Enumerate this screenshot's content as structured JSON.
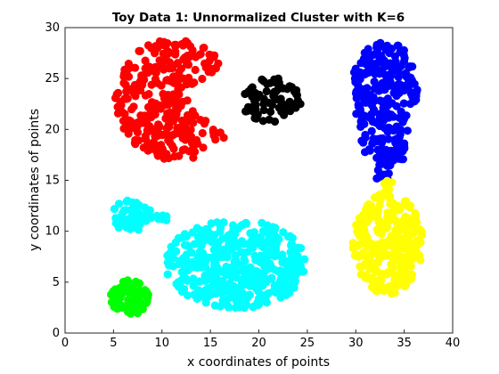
{
  "chart_data": {
    "type": "scatter",
    "title": "Toy Data 1: Unnormalized Cluster with K=6",
    "xlabel": "x coordinates of points",
    "ylabel": "y coordinates of points",
    "xlim": [
      0,
      40
    ],
    "ylim": [
      0,
      30
    ],
    "xticks": [
      "0",
      "5",
      "10",
      "15",
      "20",
      "25",
      "30",
      "35",
      "40"
    ],
    "yticks": [
      "0",
      "5",
      "10",
      "15",
      "20",
      "25",
      "30"
    ],
    "grid": false,
    "legend": "none",
    "marker": "filled circle",
    "clusters": [
      {
        "color": "#ff0000",
        "shape": "pacman",
        "cx": 11.5,
        "cy": 23.0,
        "r": 6.2,
        "n": 320,
        "note_x_range": [
          3.4,
          15.8
        ],
        "note_y_range": [
          16.5,
          28.8
        ]
      },
      {
        "color": "#000000",
        "shape": "ellipse",
        "cx": 21.2,
        "cy": 22.9,
        "rx": 3.2,
        "ry": 2.2,
        "n": 75
      },
      {
        "color": "#0000ff",
        "shape": "drop",
        "cx": 33.0,
        "cy": 21.8,
        "rx": 4.0,
        "ry": 6.2,
        "tail_to": [
          32.8,
          15.0
        ],
        "n": 300
      },
      {
        "color": "#ffff00",
        "shape": "ellipse",
        "cx": 33.3,
        "cy": 8.8,
        "rx": 3.6,
        "ry": 5.0,
        "top": 15.0,
        "n": 280
      },
      {
        "color": "#00ffff",
        "shape": "ellipse",
        "cx": 17.6,
        "cy": 6.8,
        "rx": 7.3,
        "ry": 4.4,
        "n": 420
      },
      {
        "color": "#00ffff",
        "shape": "ellipse",
        "cx": 6.9,
        "cy": 11.5,
        "rx": 2.0,
        "ry": 1.6,
        "n": 55
      },
      {
        "color": "#00ff00",
        "shape": "ellipse",
        "cx": 6.7,
        "cy": 3.5,
        "rx": 2.0,
        "ry": 1.7,
        "n": 70
      }
    ]
  }
}
